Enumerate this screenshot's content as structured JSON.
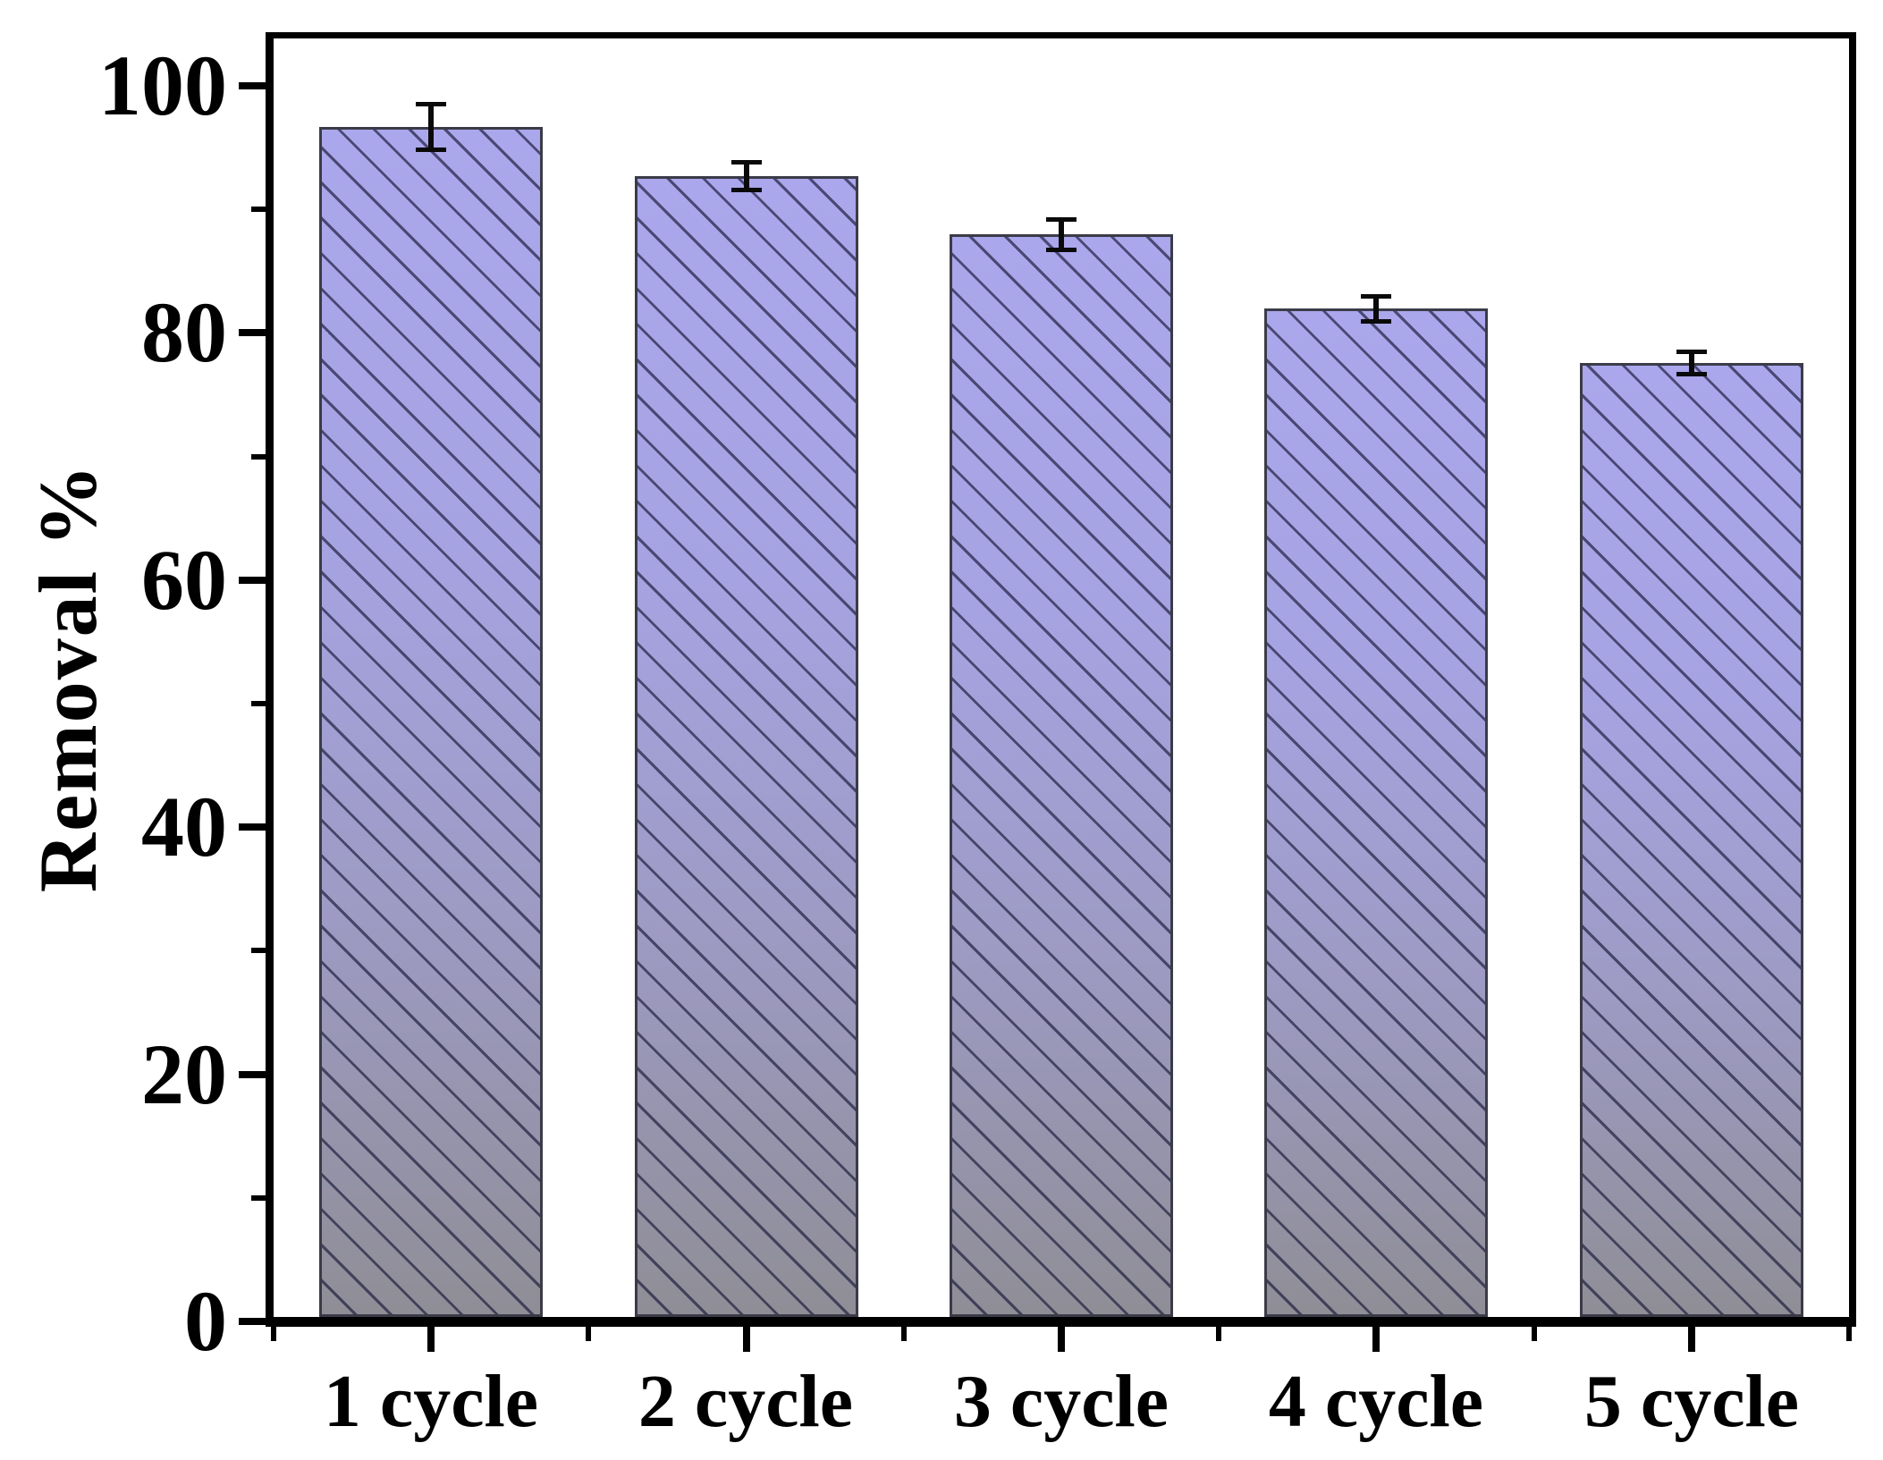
{
  "chart_data": {
    "type": "bar",
    "title": "",
    "categories": [
      "1 cycle",
      "2 cycle",
      "3 cycle",
      "4 cycle",
      "5 cycle"
    ],
    "values": [
      96.3,
      92.3,
      87.6,
      81.6,
      77.2
    ],
    "errors": [
      2.0,
      1.3,
      1.4,
      1.2,
      1.1
    ],
    "xlabel": "",
    "ylabel": "Removal %",
    "ylim": [
      0,
      100
    ],
    "yticks_major": [
      0,
      20,
      40,
      60,
      80,
      100
    ],
    "yticks_minor": [
      10,
      30,
      50,
      70,
      90
    ],
    "ytick_labels": [
      "0",
      "20",
      "40",
      "60",
      "80",
      "100"
    ],
    "grid": false,
    "legend_position": "none",
    "bar_hatch": "diagonal-down",
    "error_bar_style": "symmetric-caps",
    "colors": {
      "bar_gradient_top": "#aaa7ec",
      "bar_gradient_mid": "#9d9ac2",
      "bar_gradient_bottom": "#8f8e96",
      "hatch_line": "#1c1c3c",
      "bar_border": "#3b3b48",
      "error_bar": "#0a0a0a",
      "axis": "#000000",
      "text": "#000000",
      "background": "#ffffff"
    }
  }
}
